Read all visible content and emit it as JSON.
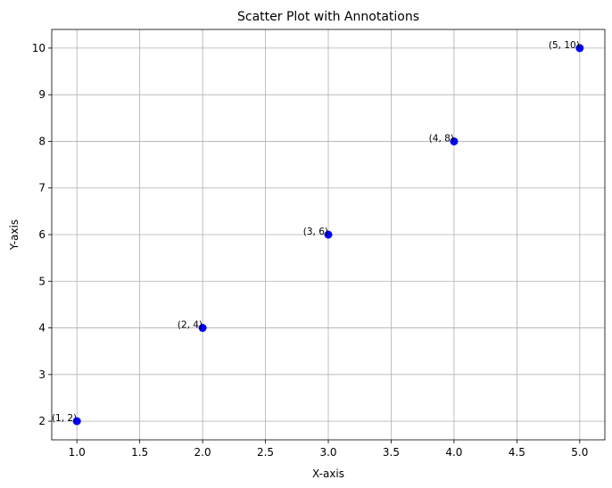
{
  "chart_data": {
    "type": "scatter",
    "title": "Scatter Plot with Annotations",
    "xlabel": "X-axis",
    "ylabel": "Y-axis",
    "xlim": [
      0.8,
      5.2
    ],
    "ylim": [
      1.6,
      10.4
    ],
    "xticks": [
      "1.0",
      "1.5",
      "2.0",
      "2.5",
      "3.0",
      "3.5",
      "4.0",
      "4.5",
      "5.0"
    ],
    "yticks": [
      "2",
      "3",
      "4",
      "5",
      "6",
      "7",
      "8",
      "9",
      "10"
    ],
    "grid": true,
    "marker_color": "#0000ff",
    "points": [
      {
        "x": 1,
        "y": 2,
        "label": "(1, 2)"
      },
      {
        "x": 2,
        "y": 4,
        "label": "(2, 4)"
      },
      {
        "x": 3,
        "y": 6,
        "label": "(3, 6)"
      },
      {
        "x": 4,
        "y": 8,
        "label": "(4, 8)"
      },
      {
        "x": 5,
        "y": 10,
        "label": "(5, 10)"
      }
    ]
  }
}
